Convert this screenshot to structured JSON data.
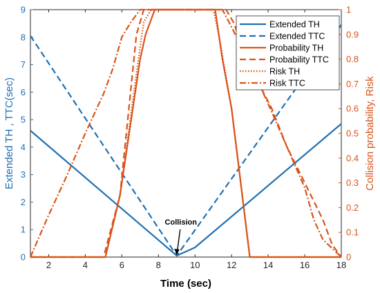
{
  "chart_data": {
    "type": "line",
    "xlabel": "Time (sec)",
    "ylabel_left": "Extended TH , TTC(sec)",
    "ylabel_right": "Collision probability, Risk",
    "xlim": [
      1,
      18
    ],
    "ylim_left": [
      0,
      9
    ],
    "ylim_right": [
      0,
      1
    ],
    "x_ticks": [
      2,
      4,
      6,
      8,
      10,
      12,
      14,
      16,
      18
    ],
    "y_ticks_left": [
      0,
      1,
      2,
      3,
      4,
      5,
      6,
      7,
      8,
      9
    ],
    "y_ticks_right": [
      0,
      0.1,
      0.2,
      0.3,
      0.4,
      0.5,
      0.6,
      0.7,
      0.8,
      0.9,
      1
    ],
    "grid": false,
    "legend_position": "top-right",
    "colors": {
      "left_axis": "#1f6fb2",
      "right_axis": "#d95319",
      "text": "#000000"
    },
    "series": [
      {
        "name": "Extended TH",
        "axis": "left",
        "style": "solid",
        "color": "#1f6fb2",
        "x": [
          1,
          9,
          10,
          18
        ],
        "y": [
          4.6,
          0.05,
          0.35,
          4.85
        ]
      },
      {
        "name": "Extended TTC",
        "axis": "left",
        "style": "dashed",
        "color": "#1f6fb2",
        "x": [
          1,
          9,
          18
        ],
        "y": [
          8.05,
          0.05,
          8.45
        ]
      },
      {
        "name": "Probability TH",
        "axis": "right",
        "style": "solid",
        "color": "#d95319",
        "x": [
          1,
          5.1,
          5.9,
          7.0,
          7.3,
          7.8,
          8.0,
          11.1,
          11.5,
          12.0,
          12.5,
          13.0,
          18
        ],
        "y": [
          0,
          0,
          0.25,
          0.8,
          0.9,
          1.0,
          1.0,
          1.0,
          0.8,
          0.6,
          0.3,
          0,
          0
        ]
      },
      {
        "name": "Probability TTC",
        "axis": "right",
        "style": "dashed",
        "color": "#d95319",
        "x": [
          1,
          5.0,
          5.9,
          6.8,
          7.0,
          7.2,
          7.6,
          11.7,
          12.1,
          12.6,
          13.0,
          13.5,
          14.2,
          15.0,
          16.0,
          17.0,
          17.5,
          18
        ],
        "y": [
          0,
          0,
          0.25,
          0.9,
          0.95,
          1.0,
          1.0,
          1.0,
          0.95,
          0.85,
          0.78,
          0.7,
          0.6,
          0.45,
          0.3,
          0.15,
          0.05,
          0
        ]
      },
      {
        "name": "Risk TH",
        "axis": "right",
        "style": "dotted",
        "color": "#d95319",
        "x": [
          1,
          5.1,
          5.9,
          7.0,
          7.2,
          7.6,
          11.0,
          11.3,
          12.0,
          12.5,
          13.0,
          18
        ],
        "y": [
          0,
          0,
          0.25,
          0.85,
          0.95,
          1.0,
          1.0,
          0.9,
          0.6,
          0.3,
          0,
          0
        ]
      },
      {
        "name": "Risk TTC",
        "axis": "right",
        "style": "dashdot",
        "color": "#d95319",
        "x": [
          1,
          2,
          3,
          4,
          5,
          5.5,
          6,
          6.5,
          7.0,
          7.4,
          11.5,
          12.0,
          13.0,
          14.0,
          15.0,
          16.0,
          16.5,
          17.0,
          18
        ],
        "y": [
          0,
          0.17,
          0.33,
          0.5,
          0.66,
          0.76,
          0.89,
          0.95,
          1.0,
          1.0,
          1.0,
          0.93,
          0.78,
          0.62,
          0.45,
          0.28,
          0.15,
          0.07,
          0
        ]
      }
    ],
    "annotations": [
      {
        "text": "Collision",
        "x": 9,
        "y": 0.05,
        "axis": "left"
      }
    ]
  }
}
